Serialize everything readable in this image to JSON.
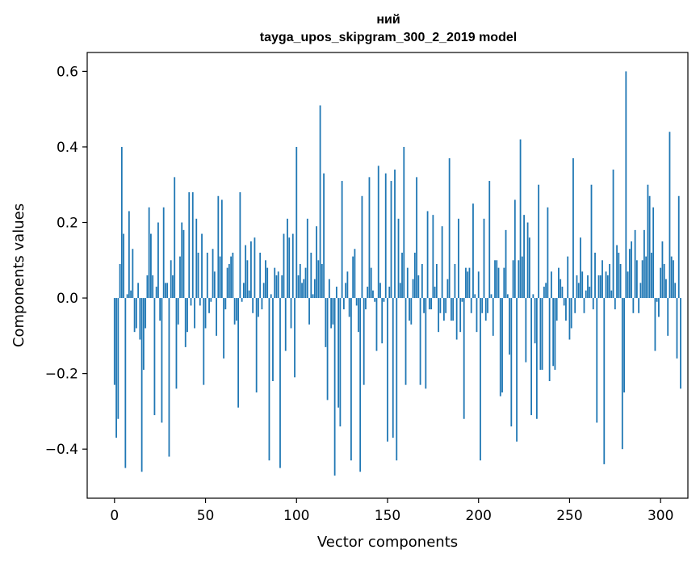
{
  "chart_data": {
    "type": "bar",
    "title_line1": "ний",
    "title_line2": "tayga_upos_skipgram_300_2_2019 model",
    "xlabel": "Vector components",
    "ylabel": "Components values",
    "xlim": [
      -15,
      315
    ],
    "ylim": [
      -0.53,
      0.65
    ],
    "xticks": [
      0,
      50,
      100,
      150,
      200,
      250,
      300
    ],
    "xtick_labels": [
      "0",
      "50",
      "100",
      "150",
      "200",
      "250",
      "300"
    ],
    "yticks": [
      -0.4,
      -0.2,
      0.0,
      0.2,
      0.4,
      0.6
    ],
    "ytick_labels": [
      "−0.4",
      "−0.2",
      "0.0",
      "0.2",
      "0.4",
      "0.6"
    ],
    "bar_color": "#1f77b4",
    "values": [
      -0.23,
      -0.37,
      -0.32,
      0.09,
      0.4,
      0.17,
      -0.45,
      0.01,
      0.23,
      0.02,
      0.13,
      -0.09,
      -0.08,
      0.04,
      -0.11,
      -0.46,
      -0.19,
      -0.08,
      0.06,
      0.24,
      0.17,
      0.06,
      -0.31,
      0.03,
      0.2,
      -0.06,
      -0.33,
      0.24,
      0.04,
      0.04,
      -0.42,
      0.1,
      0.06,
      0.32,
      -0.24,
      -0.07,
      0.11,
      0.2,
      0.18,
      -0.13,
      -0.09,
      0.28,
      -0.02,
      0.28,
      -0.08,
      0.21,
      0.12,
      -0.02,
      0.17,
      -0.23,
      -0.08,
      0.12,
      -0.04,
      -0.01,
      0.13,
      0.07,
      -0.1,
      0.27,
      0.11,
      0.26,
      -0.16,
      -0.03,
      0.08,
      0.09,
      0.11,
      0.12,
      -0.07,
      -0.06,
      -0.29,
      0.28,
      -0.01,
      0.04,
      0.14,
      0.1,
      0.02,
      0.15,
      -0.04,
      0.16,
      -0.25,
      -0.05,
      0.12,
      -0.03,
      0.04,
      0.1,
      0.08,
      -0.43,
      0.01,
      -0.22,
      0.08,
      0.06,
      0.07,
      -0.45,
      0.06,
      0.17,
      -0.14,
      0.21,
      0.16,
      -0.08,
      0.17,
      -0.21,
      0.4,
      0.06,
      0.09,
      0.04,
      0.05,
      0.08,
      0.21,
      -0.07,
      0.12,
      0.01,
      0.05,
      0.19,
      0.1,
      0.51,
      0.09,
      0.33,
      -0.13,
      -0.27,
      0.05,
      -0.08,
      -0.07,
      -0.47,
      0.03,
      -0.29,
      -0.34,
      0.31,
      -0.03,
      0.04,
      0.07,
      -0.05,
      -0.43,
      0.11,
      0.13,
      -0.02,
      -0.09,
      -0.46,
      0.27,
      -0.23,
      -0.03,
      0.03,
      0.32,
      0.08,
      0.02,
      -0.01,
      -0.14,
      0.35,
      0.04,
      -0.12,
      -0.01,
      0.33,
      -0.38,
      0.03,
      0.31,
      -0.37,
      0.34,
      -0.43,
      0.21,
      0.04,
      0.12,
      0.4,
      -0.23,
      0.08,
      -0.06,
      -0.07,
      0.05,
      0.12,
      0.32,
      0.06,
      -0.23,
      0.09,
      -0.04,
      -0.24,
      0.23,
      -0.03,
      -0.03,
      0.22,
      0.03,
      0.09,
      -0.09,
      -0.04,
      0.19,
      -0.06,
      -0.04,
      0.05,
      0.37,
      -0.06,
      -0.06,
      0.09,
      -0.11,
      0.21,
      -0.09,
      -0.01,
      -0.32,
      0.08,
      0.07,
      0.08,
      -0.04,
      0.25,
      0.01,
      -0.09,
      0.07,
      -0.43,
      -0.04,
      0.21,
      -0.06,
      -0.04,
      0.31,
      0.01,
      -0.1,
      0.1,
      0.1,
      0.08,
      -0.26,
      -0.25,
      0.08,
      0.18,
      0.01,
      -0.15,
      -0.34,
      0.1,
      0.26,
      -0.38,
      0.1,
      0.42,
      0.11,
      0.22,
      -0.17,
      0.2,
      0.16,
      -0.31,
      0.01,
      -0.12,
      -0.32,
      0.3,
      -0.19,
      -0.19,
      0.03,
      0.04,
      0.24,
      -0.22,
      0.07,
      -0.18,
      -0.19,
      -0.06,
      0.08,
      0.05,
      0.03,
      -0.02,
      -0.06,
      0.11,
      -0.11,
      -0.08,
      0.37,
      -0.04,
      0.06,
      0.04,
      0.16,
      0.07,
      -0.04,
      0.02,
      0.06,
      0.03,
      0.3,
      -0.03,
      0.12,
      -0.33,
      0.06,
      0.06,
      0.1,
      -0.44,
      0.07,
      0.06,
      0.09,
      0.02,
      0.34,
      -0.03,
      0.14,
      0.12,
      0.09,
      -0.4,
      -0.25,
      0.6,
      0.07,
      0.13,
      0.15,
      -0.04,
      0.18,
      0.1,
      -0.04,
      0.04,
      0.1,
      0.18,
      0.11,
      0.3,
      0.27,
      0.12,
      0.24,
      -0.14,
      -0.01,
      -0.05,
      0.08,
      0.15,
      0.09,
      0.05,
      -0.1,
      0.44,
      0.11,
      0.1,
      0.04,
      -0.16,
      0.27,
      -0.24
    ]
  }
}
